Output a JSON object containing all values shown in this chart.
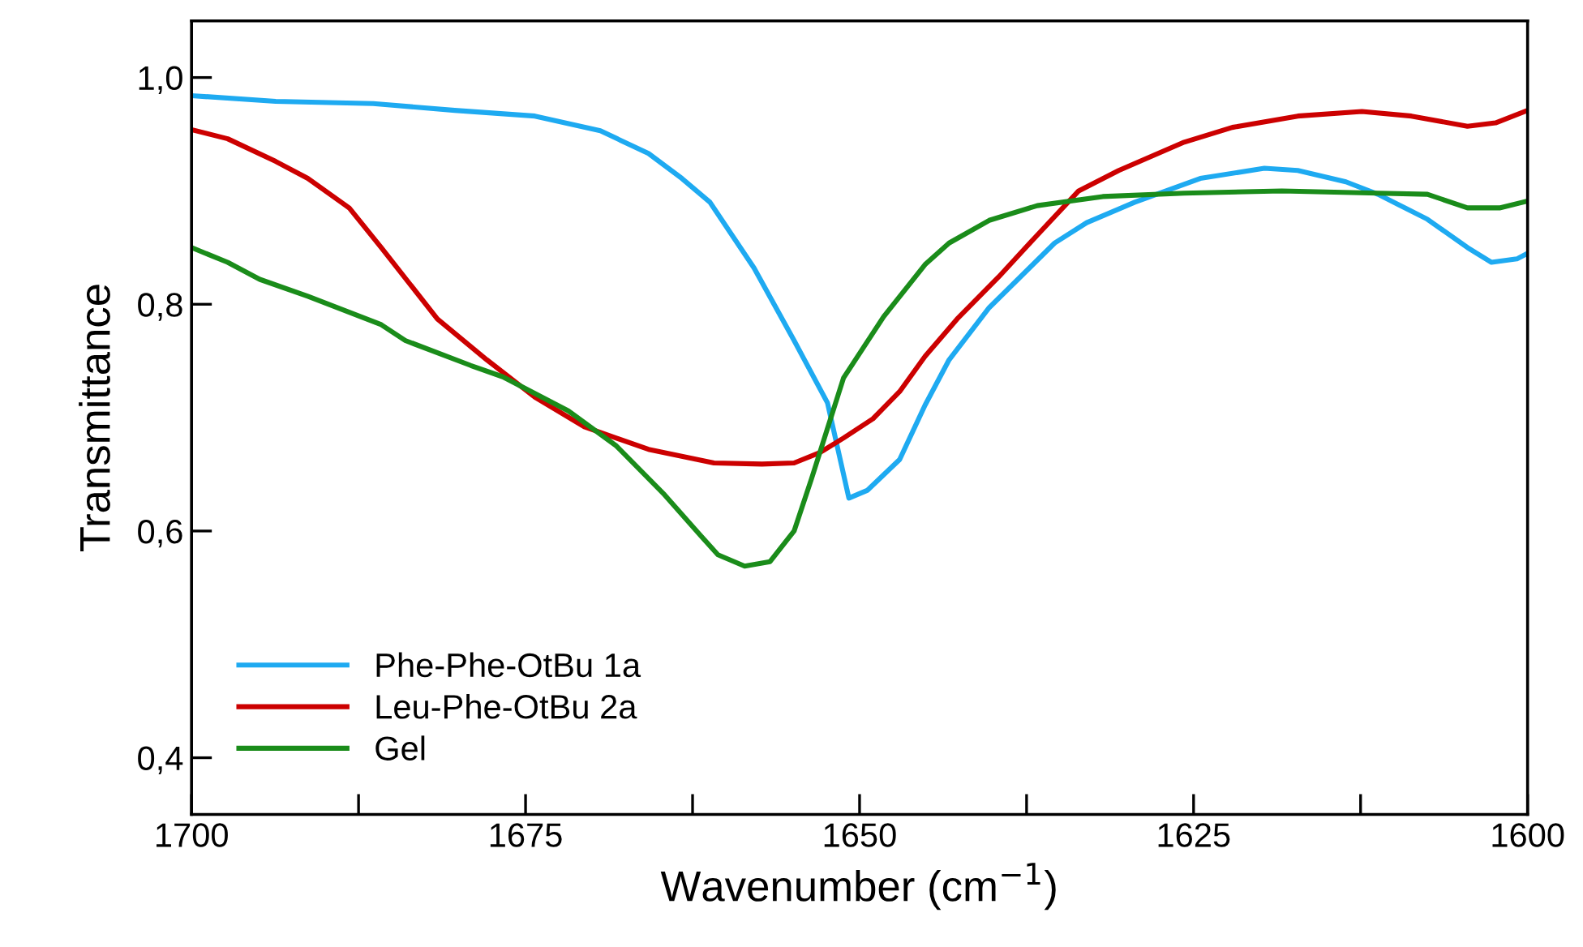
{
  "chart_data": {
    "type": "line",
    "xlabel": "Wavenumber (cm$^{−1}$)",
    "ylabel": "Transmittance",
    "xlim": [
      1700,
      1600
    ],
    "ylim": [
      0.35,
      1.05
    ],
    "xticks": [
      1700,
      {
        "value": 1687.5,
        "label": null
      },
      1675,
      {
        "value": 1662.5,
        "label": null
      },
      1650,
      {
        "value": 1637.5,
        "label": null
      },
      1625,
      {
        "value": 1612.5,
        "label": null
      },
      1600
    ],
    "yticks": [
      {
        "value": 0.4,
        "label": "0,4"
      },
      {
        "value": 0.6,
        "label": "0,6"
      },
      {
        "value": 0.8,
        "label": "0,8"
      },
      {
        "value": 1.0,
        "label": "1,0"
      }
    ],
    "grid": false,
    "legend": "bottom left",
    "line_style": "solid",
    "marker": "none",
    "series": [
      {
        "name": "Phe-Phe-OtBu 1a",
        "color": "#1eaaf1",
        "x": [
          1700,
          1693.7,
          1686.4,
          1680.3,
          1674.3,
          1669.4,
          1665.8,
          1663.3,
          1661.2,
          1657.9,
          1654.9,
          1652.4,
          1650.8,
          1649.4,
          1647,
          1645.1,
          1643.3,
          1640.3,
          1635.4,
          1633,
          1629.4,
          1624.5,
          1619.7,
          1617.2,
          1613.6,
          1611.2,
          1607.5,
          1604.5,
          1602.7,
          1600.8,
          1600
        ],
        "values": [
          0.984,
          0.979,
          0.977,
          0.971,
          0.966,
          0.953,
          0.933,
          0.911,
          0.89,
          0.832,
          0.768,
          0.713,
          0.629,
          0.636,
          0.663,
          0.711,
          0.751,
          0.797,
          0.854,
          0.872,
          0.89,
          0.911,
          0.92,
          0.918,
          0.908,
          0.897,
          0.875,
          0.85,
          0.837,
          0.84,
          0.845
        ]
      },
      {
        "name": "Leu-Phe-OtBu 2a",
        "color": "#cc0000",
        "x": [
          1700,
          1697.3,
          1693.7,
          1691.3,
          1688.2,
          1685.8,
          1681.6,
          1677.9,
          1674.3,
          1670.6,
          1665.8,
          1660.9,
          1657.3,
          1654.9,
          1653,
          1651.2,
          1649,
          1647,
          1645.1,
          1642.7,
          1639.6,
          1636.7,
          1633.6,
          1630.6,
          1625.7,
          1622.1,
          1617.2,
          1612.4,
          1608.7,
          1604.5,
          1602.4,
          1600
        ],
        "values": [
          0.954,
          0.946,
          0.926,
          0.911,
          0.885,
          0.85,
          0.787,
          0.751,
          0.718,
          0.692,
          0.672,
          0.66,
          0.659,
          0.66,
          0.669,
          0.682,
          0.699,
          0.723,
          0.754,
          0.787,
          0.824,
          0.861,
          0.9,
          0.918,
          0.943,
          0.956,
          0.966,
          0.97,
          0.966,
          0.957,
          0.96,
          0.971
        ]
      },
      {
        "name": "Gel",
        "color": "#1a8c1a",
        "x": [
          1700,
          1697.3,
          1694.9,
          1691.3,
          1685.8,
          1684,
          1679.1,
          1676.7,
          1671.8,
          1668.2,
          1664.6,
          1661.9,
          1660.6,
          1658.6,
          1656.7,
          1654.9,
          1653.6,
          1651.2,
          1648.2,
          1645.1,
          1643.3,
          1640.3,
          1636.7,
          1631.8,
          1625.7,
          1618.4,
          1611.2,
          1607.5,
          1604.5,
          1602.1,
          1600
        ],
        "values": [
          0.85,
          0.837,
          0.822,
          0.807,
          0.782,
          0.768,
          0.746,
          0.736,
          0.706,
          0.675,
          0.632,
          0.596,
          0.579,
          0.569,
          0.573,
          0.6,
          0.646,
          0.735,
          0.789,
          0.835,
          0.854,
          0.874,
          0.887,
          0.895,
          0.898,
          0.9,
          0.898,
          0.897,
          0.885,
          0.885,
          0.891
        ]
      }
    ]
  }
}
